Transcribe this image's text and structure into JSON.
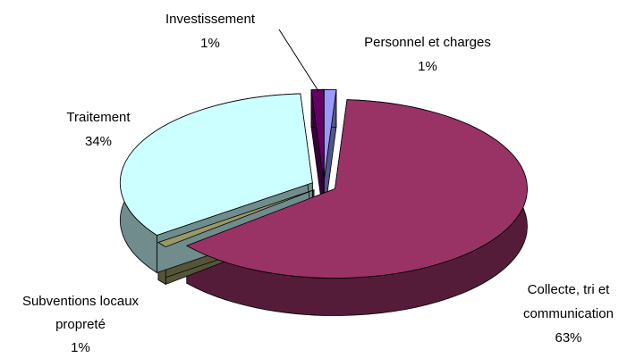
{
  "chart_data": {
    "type": "pie3d",
    "categories": [
      "Personnel et charges",
      "Collecte, tri et communication",
      "Subventions locaux propreté",
      "Traitement",
      "Investissement"
    ],
    "values": [
      1,
      63,
      1,
      34,
      1
    ],
    "value_labels": [
      "1%",
      "63%",
      "1%",
      "34%",
      "1%"
    ],
    "colors": [
      "#9999ff",
      "#993366",
      "#999966",
      "#ccffff",
      "#660066"
    ]
  }
}
